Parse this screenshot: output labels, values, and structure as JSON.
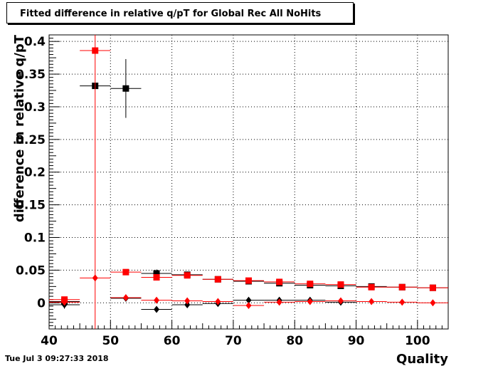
{
  "chart_data": {
    "type": "scatter",
    "title": "Fitted difference in relative q/pT  for Global Rec All NoHits",
    "xlabel": "Quality",
    "ylabel": "difference in relative q/pT",
    "xlim": [
      40,
      105
    ],
    "ylim": [
      -0.04,
      0.41
    ],
    "x_ticks": [
      40,
      50,
      60,
      70,
      80,
      90,
      100
    ],
    "y_ticks": [
      0,
      0.05,
      0.1,
      0.15,
      0.2,
      0.25,
      0.3,
      0.35,
      0.4
    ],
    "x_tick_labels": [
      "40",
      "50",
      "60",
      "70",
      "80",
      "90",
      "100"
    ],
    "y_tick_labels": [
      "0",
      "0.05",
      "0.1",
      "0.15",
      "0.2",
      "0.25",
      "0.3",
      "0.35",
      "0.4"
    ],
    "grid": true,
    "x_bin_half_width": 2.5,
    "series": [
      {
        "marker": "square",
        "color": "#000000",
        "points": [
          {
            "x": 42.5,
            "y": 0.002,
            "yerr": 0.004
          },
          {
            "x": 47.5,
            "y": 0.332,
            "yerr": 0.002
          },
          {
            "x": 52.5,
            "y": 0.328,
            "yerr": 0.045
          },
          {
            "x": 57.5,
            "y": 0.045,
            "yerr": 0.006
          },
          {
            "x": 62.5,
            "y": 0.043,
            "yerr": 0.003
          },
          {
            "x": 67.5,
            "y": 0.036,
            "yerr": 0.002
          },
          {
            "x": 72.5,
            "y": 0.033,
            "yerr": 0.002
          },
          {
            "x": 77.5,
            "y": 0.03,
            "yerr": 0.002
          },
          {
            "x": 82.5,
            "y": 0.027,
            "yerr": 0.002
          },
          {
            "x": 87.5,
            "y": 0.026,
            "yerr": 0.002
          },
          {
            "x": 92.5,
            "y": 0.025,
            "yerr": 0.002
          },
          {
            "x": 97.5,
            "y": 0.024,
            "yerr": 0.002
          },
          {
            "x": 102.5,
            "y": 0.023,
            "yerr": 0.002
          }
        ]
      },
      {
        "marker": "square",
        "color": "#ff0000",
        "points": [
          {
            "x": 42.5,
            "y": 0.005,
            "yerr": 0.003
          },
          {
            "x": 47.5,
            "y": 0.386,
            "yerr": 0.5
          },
          {
            "x": 52.5,
            "y": 0.047,
            "yerr": 0.003
          },
          {
            "x": 57.5,
            "y": 0.039,
            "yerr": 0.002
          },
          {
            "x": 62.5,
            "y": 0.042,
            "yerr": 0.002
          },
          {
            "x": 67.5,
            "y": 0.036,
            "yerr": 0.002
          },
          {
            "x": 72.5,
            "y": 0.034,
            "yerr": 0.002
          },
          {
            "x": 77.5,
            "y": 0.032,
            "yerr": 0.002
          },
          {
            "x": 82.5,
            "y": 0.029,
            "yerr": 0.002
          },
          {
            "x": 87.5,
            "y": 0.028,
            "yerr": 0.002
          },
          {
            "x": 92.5,
            "y": 0.024,
            "yerr": 0.002
          },
          {
            "x": 97.5,
            "y": 0.024,
            "yerr": 0.002
          },
          {
            "x": 102.5,
            "y": 0.023,
            "yerr": 0.002
          }
        ]
      },
      {
        "marker": "diamond",
        "color": "#000000",
        "points": [
          {
            "x": 42.5,
            "y": -0.003,
            "yerr": 0.006
          },
          {
            "x": 52.5,
            "y": 0.007,
            "yerr": 0.002
          },
          {
            "x": 57.5,
            "y": -0.01,
            "yerr": 0.002
          },
          {
            "x": 62.5,
            "y": -0.003,
            "yerr": 0.002
          },
          {
            "x": 67.5,
            "y": -0.001,
            "yerr": 0.002
          },
          {
            "x": 72.5,
            "y": 0.004,
            "yerr": 0.002
          },
          {
            "x": 77.5,
            "y": 0.004,
            "yerr": 0.002
          },
          {
            "x": 82.5,
            "y": 0.004,
            "yerr": 0.002
          },
          {
            "x": 87.5,
            "y": 0.001,
            "yerr": 0.002
          }
        ]
      },
      {
        "marker": "diamond",
        "color": "#ff0000",
        "points": [
          {
            "x": 42.5,
            "y": 0.001,
            "yerr": 0.003
          },
          {
            "x": 47.5,
            "y": 0.038,
            "yerr": 0.001
          },
          {
            "x": 52.5,
            "y": 0.008,
            "yerr": 0.002
          },
          {
            "x": 57.5,
            "y": 0.004,
            "yerr": 0.002
          },
          {
            "x": 62.5,
            "y": 0.003,
            "yerr": 0.002
          },
          {
            "x": 67.5,
            "y": 0.002,
            "yerr": 0.002
          },
          {
            "x": 72.5,
            "y": -0.004,
            "yerr": 0.002
          },
          {
            "x": 77.5,
            "y": 0.001,
            "yerr": 0.002
          },
          {
            "x": 82.5,
            "y": 0.002,
            "yerr": 0.002
          },
          {
            "x": 87.5,
            "y": 0.003,
            "yerr": 0.002
          },
          {
            "x": 92.5,
            "y": 0.002,
            "yerr": 0.002
          },
          {
            "x": 97.5,
            "y": 0.001,
            "yerr": 0.002
          },
          {
            "x": 102.5,
            "y": 0.0,
            "yerr": 0.002
          }
        ]
      }
    ]
  },
  "footer": {
    "date": "Tue Jul  3 09:27:33 2018"
  }
}
